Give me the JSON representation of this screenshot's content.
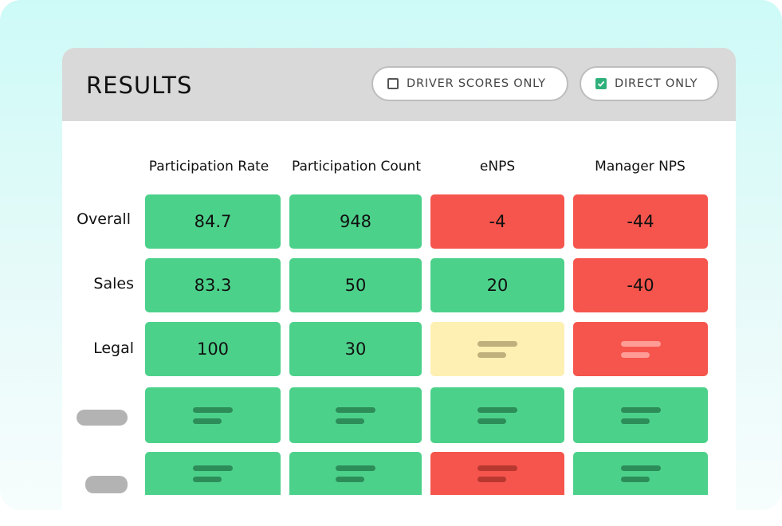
{
  "header": {
    "title": "RESULTS",
    "toggles": [
      {
        "label": "DRIVER SCORES ONLY",
        "checked": false
      },
      {
        "label": "DIRECT ONLY",
        "checked": true
      }
    ]
  },
  "table": {
    "columns": [
      "Participation Rate",
      "Participation Count",
      "eNPS",
      "Manager NPS"
    ],
    "rows": [
      {
        "label": "Overall",
        "cells": [
          {
            "value": "84.7",
            "status": "green"
          },
          {
            "value": "948",
            "status": "green"
          },
          {
            "value": "-4",
            "status": "red"
          },
          {
            "value": "-44",
            "status": "red"
          }
        ]
      },
      {
        "label": "Sales",
        "cells": [
          {
            "value": "83.3",
            "status": "green"
          },
          {
            "value": "50",
            "status": "green"
          },
          {
            "value": "20",
            "status": "green"
          },
          {
            "value": "-40",
            "status": "red"
          }
        ]
      },
      {
        "label": "Legal",
        "cells": [
          {
            "value": "100",
            "status": "green"
          },
          {
            "value": "30",
            "status": "green"
          },
          {
            "value": "",
            "status": "yellow"
          },
          {
            "value": "",
            "status": "red"
          }
        ]
      },
      {
        "label": "",
        "cells": [
          {
            "value": "",
            "status": "green"
          },
          {
            "value": "",
            "status": "green"
          },
          {
            "value": "",
            "status": "green"
          },
          {
            "value": "",
            "status": "green"
          }
        ]
      },
      {
        "label": "",
        "cells": [
          {
            "value": "",
            "status": "green"
          },
          {
            "value": "",
            "status": "green"
          },
          {
            "value": "",
            "status": "red"
          },
          {
            "value": "",
            "status": "green"
          }
        ]
      }
    ]
  },
  "colors": {
    "green": "#4cd18a",
    "red": "#f5554c",
    "yellow": "#fdf0b2",
    "check": "#2fb07a",
    "header_bg": "#d9d9d9"
  }
}
